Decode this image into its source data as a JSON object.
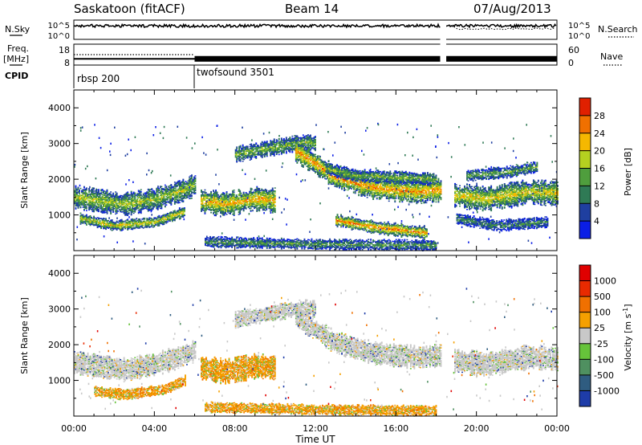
{
  "header": {
    "station": "Saskatoon (fitACF)",
    "beam": "Beam 14",
    "date": "07/Aug/2013"
  },
  "labels": {
    "nsky": "N.Sky",
    "nsky_hi": "10^5",
    "nsky_lo": "10^0",
    "nsearch": "N.Search",
    "nsearch_hi": "10^5",
    "nsearch_lo": "10^0",
    "freq_top": "Freq.",
    "freq_unit": "[MHz]",
    "freq_hi": "18",
    "freq_lo": "8",
    "nave": "Nave",
    "nave_hi": "60",
    "nave_lo": "0",
    "cpid": "CPID"
  },
  "cpid_segments": [
    {
      "name": "rbsp 200",
      "start_hour": 0
    },
    {
      "name": "twofsound 3501",
      "start_hour": 6
    }
  ],
  "chart_data": [
    {
      "type": "heatmap",
      "quantity": "power",
      "ylabel": "Slant Range [km]",
      "ylim": [
        0,
        4500
      ],
      "yticks": [
        1000,
        2000,
        3000,
        4000
      ],
      "colorbar": {
        "label": "Power [dB]",
        "ticks": [
          "4",
          "8",
          "12",
          "16",
          "20",
          "24",
          "28"
        ],
        "colors": [
          "#0a1ee6",
          "#1f3fa0",
          "#2f7a55",
          "#4f9e3d",
          "#b5d020",
          "#f5b800",
          "#f07000",
          "#e02000"
        ]
      },
      "bands": [
        {
          "x": [
            0,
            2.5,
            4.0,
            5.5,
            6.0
          ],
          "y": [
            1500,
            1300,
            1450,
            1700,
            1850
          ],
          "half": 260,
          "level": 0.55
        },
        {
          "x": [
            0.3,
            2.0,
            4.0,
            5.5
          ],
          "y": [
            900,
            700,
            800,
            1100
          ],
          "half": 120,
          "level": 0.62
        },
        {
          "x": [
            6.3,
            7.5,
            9.0,
            10.0
          ],
          "y": [
            1400,
            1300,
            1450,
            1400
          ],
          "half": 280,
          "level": 0.72
        },
        {
          "x": [
            8.0,
            10.0,
            11.5,
            12.0
          ],
          "y": [
            2700,
            2900,
            3050,
            3000
          ],
          "half": 180,
          "level": 0.5
        },
        {
          "x": [
            11.0,
            13.0,
            15.0,
            17.0,
            18.3
          ],
          "y": [
            2800,
            2050,
            1750,
            1650,
            1700
          ],
          "half": 260,
          "level": 0.78
        },
        {
          "x": [
            12.5,
            14.0,
            16.0,
            18.0
          ],
          "y": [
            2300,
            2100,
            2050,
            2000
          ],
          "half": 140,
          "level": 0.48
        },
        {
          "x": [
            13.0,
            15.0,
            17.5
          ],
          "y": [
            850,
            650,
            500
          ],
          "half": 150,
          "level": 0.8
        },
        {
          "x": [
            6.5,
            12.0,
            18.0
          ],
          "y": [
            250,
            180,
            150
          ],
          "half": 120,
          "level": 0.4
        },
        {
          "x": [
            18.9,
            20.5,
            22.5,
            24.0
          ],
          "y": [
            1550,
            1450,
            1650,
            1600
          ],
          "half": 280,
          "level": 0.65
        },
        {
          "x": [
            19.5,
            21.5,
            23.0
          ],
          "y": [
            2100,
            2200,
            2350
          ],
          "half": 130,
          "level": 0.45
        },
        {
          "x": [
            19.0,
            21.0,
            23.5
          ],
          "y": [
            900,
            700,
            800
          ],
          "half": 130,
          "level": 0.35
        }
      ]
    },
    {
      "type": "heatmap",
      "quantity": "velocity",
      "ylabel": "Slant Range [km]",
      "ylim": [
        0,
        4500
      ],
      "yticks": [
        1000,
        2000,
        3000,
        4000
      ],
      "colorbar": {
        "label": "Velocity [m s^-1]",
        "ticks": [
          "1000",
          "500",
          "100",
          "25",
          "-25",
          "-100",
          "-500",
          "-1000"
        ],
        "colors": [
          "#1e3ca8",
          "#2f5c80",
          "#4f9060",
          "#66c33a",
          "#c8c8c8",
          "#f5a000",
          "#f07000",
          "#e82a00",
          "#e00000"
        ]
      },
      "xlabel": "Time UT",
      "xlim": [
        0,
        24
      ],
      "xticks": [
        "00:00",
        "04:00",
        "08:00",
        "12:00",
        "16:00",
        "20:00",
        "00:00"
      ],
      "bands": [
        {
          "x": [
            0,
            2.5,
            4.0,
            5.5,
            6.0
          ],
          "y": [
            1500,
            1300,
            1450,
            1700,
            1850
          ],
          "half": 260,
          "level": 0.5
        },
        {
          "x": [
            1.0,
            2.5,
            4.5,
            5.5
          ],
          "y": [
            700,
            600,
            750,
            1000
          ],
          "half": 120,
          "level": 0.7
        },
        {
          "x": [
            6.3,
            7.5,
            9.0,
            10.0
          ],
          "y": [
            1350,
            1250,
            1400,
            1350
          ],
          "half": 280,
          "level": 0.62
        },
        {
          "x": [
            8.0,
            10.0,
            11.5,
            12.0
          ],
          "y": [
            2700,
            2900,
            3050,
            3000
          ],
          "half": 180,
          "level": 0.5
        },
        {
          "x": [
            11.0,
            13.0,
            15.0,
            17.0,
            18.3
          ],
          "y": [
            2800,
            2050,
            1750,
            1650,
            1700
          ],
          "half": 260,
          "level": 0.5
        },
        {
          "x": [
            6.5,
            12.0,
            18.0
          ],
          "y": [
            250,
            180,
            150
          ],
          "half": 120,
          "level": 0.72
        },
        {
          "x": [
            18.9,
            20.5,
            22.5,
            24.0
          ],
          "y": [
            1550,
            1450,
            1650,
            1600
          ],
          "half": 280,
          "level": 0.5
        }
      ]
    }
  ],
  "top_panels": {
    "nsky_level": 0.7,
    "nsearch_level": 0.55,
    "freq_mhz_segments": [
      {
        "x": [
          0,
          6
        ],
        "mhz": 11
      },
      {
        "x": [
          6,
          18.2
        ],
        "mhz": 11
      },
      {
        "x": [
          18.5,
          24
        ],
        "mhz": 11
      }
    ],
    "nave_segments": [
      {
        "x": [
          0,
          6
        ],
        "value": 30
      }
    ],
    "gap_hours": [
      18.2,
      18.5
    ]
  }
}
